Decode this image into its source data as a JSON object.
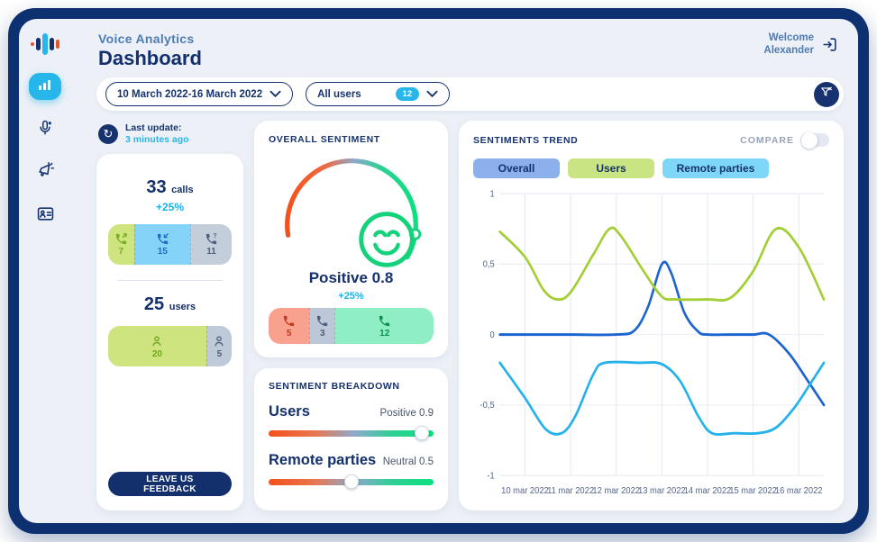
{
  "app": {
    "brand": "Voice Analytics",
    "title": "Dashboard",
    "welcome_line1": "Welcome",
    "welcome_line2": "Alexander"
  },
  "sidebar": {
    "items": [
      {
        "icon": "voice-logo"
      },
      {
        "icon": "bar-chart",
        "active": true
      },
      {
        "icon": "microphone"
      },
      {
        "icon": "megaphone"
      },
      {
        "icon": "id-card"
      }
    ]
  },
  "filters": {
    "date_range": "10 March 2022-16 March 2022",
    "users": "All users",
    "users_count": "12"
  },
  "last_update": {
    "label": "Last update:",
    "value": "3 minutes ago"
  },
  "calls": {
    "total": "33",
    "unit": "calls",
    "delta": "+25%",
    "segments": [
      {
        "type": "outgoing-calls",
        "icon": "call-out",
        "value": "7",
        "color": "#cde47f",
        "icon_color": "#76ab1d"
      },
      {
        "type": "incoming-calls",
        "icon": "call-in",
        "value": "15",
        "color": "#85d4f8",
        "icon_color": "#1b6cc2"
      },
      {
        "type": "missed-calls",
        "icon": "call-missed",
        "value": "11",
        "color": "#c4cdda",
        "icon_color": "#4e5e7c"
      }
    ]
  },
  "users": {
    "total": "25",
    "unit": "users",
    "segments": [
      {
        "type": "active-users",
        "icon": "user",
        "value": "20",
        "color": "#cde47f",
        "icon_color": "#6fa61c"
      },
      {
        "type": "inactive-users",
        "icon": "user",
        "value": "5",
        "color": "#bfcad9",
        "icon_color": "#4e5e7c"
      }
    ]
  },
  "feedback_button": "LEAVE US FEEDBACK",
  "overall_sentiment": {
    "title": "OVERALL SENTIMENT",
    "label": "Positive 0.8",
    "delta": "+25%",
    "gauge_value": 0.8,
    "segments": [
      {
        "type": "negative-calls",
        "icon": "call",
        "value": "5",
        "color": "#f9a18f",
        "icon_color": "#c0391f"
      },
      {
        "type": "neutral-calls",
        "icon": "call",
        "value": "3",
        "color": "#bcc7d7",
        "icon_color": "#4e5e7c"
      },
      {
        "type": "positive-calls",
        "icon": "call",
        "value": "12",
        "color": "#8feec3",
        "icon_color": "#0c8f55"
      }
    ]
  },
  "sentiment_breakdown": {
    "title": "SENTIMENT BREAKDOWN",
    "rows": [
      {
        "label": "Users",
        "value": "Positive 0.9",
        "position": 0.93
      },
      {
        "label": "Remote parties",
        "value": "Neutral 0.5",
        "position": 0.5
      }
    ]
  },
  "trend": {
    "title": "SENTIMENTS TREND",
    "compare_label": "COMPARE",
    "compare_on": false,
    "legend": [
      {
        "label": "Overall",
        "bg": "#8cb0ec"
      },
      {
        "label": "Users",
        "bg": "#c9e583"
      },
      {
        "label": "Remote parties",
        "bg": "#7fd7f7"
      }
    ]
  },
  "chart_data": {
    "type": "line",
    "title": "SENTIMENTS TREND",
    "x_tick_labels": [
      "10 mar 2022",
      "11 mar 2022",
      "12 mar 2022",
      "13 mar 2022",
      "14 mar 2022",
      "15 mar 2022",
      "16 mar 2022"
    ],
    "y_ticks": [
      1,
      0.5,
      0,
      -0.5,
      -1
    ],
    "y_tick_labels": [
      "1",
      "0,5",
      "0",
      "-0,5",
      "-1"
    ],
    "ylim": [
      -1,
      1
    ],
    "xlim": [
      -0.55,
      6.55
    ],
    "grid": true,
    "legend_position": "top",
    "series": [
      {
        "name": "Overall",
        "color": "#1c64d1",
        "points": [
          [
            -0.55,
            0
          ],
          [
            0,
            0
          ],
          [
            1,
            0
          ],
          [
            2,
            0
          ],
          [
            2.4,
            0.03
          ],
          [
            2.7,
            0.2
          ],
          [
            3,
            0.5
          ],
          [
            3.2,
            0.44
          ],
          [
            3.5,
            0.15
          ],
          [
            3.8,
            0.02
          ],
          [
            4,
            0
          ],
          [
            4.5,
            0
          ],
          [
            5,
            0
          ],
          [
            5.35,
            0
          ],
          [
            5.8,
            -0.14
          ],
          [
            6.2,
            -0.33
          ],
          [
            6.55,
            -0.5
          ]
        ]
      },
      {
        "name": "Users",
        "color": "#a3cf35",
        "points": [
          [
            -0.55,
            0.73
          ],
          [
            0,
            0.55
          ],
          [
            0.4,
            0.32
          ],
          [
            0.7,
            0.25
          ],
          [
            1,
            0.3
          ],
          [
            1.5,
            0.57
          ],
          [
            1.85,
            0.75
          ],
          [
            2.1,
            0.7
          ],
          [
            2.6,
            0.45
          ],
          [
            3,
            0.27
          ],
          [
            3.3,
            0.25
          ],
          [
            4,
            0.25
          ],
          [
            4.5,
            0.26
          ],
          [
            5,
            0.45
          ],
          [
            5.5,
            0.75
          ],
          [
            6,
            0.62
          ],
          [
            6.55,
            0.25
          ]
        ]
      },
      {
        "name": "Remote parties",
        "color": "#25b2ec",
        "points": [
          [
            -0.55,
            -0.2
          ],
          [
            0,
            -0.45
          ],
          [
            0.45,
            -0.67
          ],
          [
            0.8,
            -0.7
          ],
          [
            1.1,
            -0.58
          ],
          [
            1.5,
            -0.28
          ],
          [
            1.75,
            -0.2
          ],
          [
            2.5,
            -0.2
          ],
          [
            3,
            -0.21
          ],
          [
            3.4,
            -0.33
          ],
          [
            3.8,
            -0.58
          ],
          [
            4.1,
            -0.7
          ],
          [
            4.6,
            -0.7
          ],
          [
            5.1,
            -0.7
          ],
          [
            5.5,
            -0.66
          ],
          [
            5.9,
            -0.52
          ],
          [
            6.25,
            -0.35
          ],
          [
            6.55,
            -0.2
          ]
        ]
      }
    ]
  }
}
